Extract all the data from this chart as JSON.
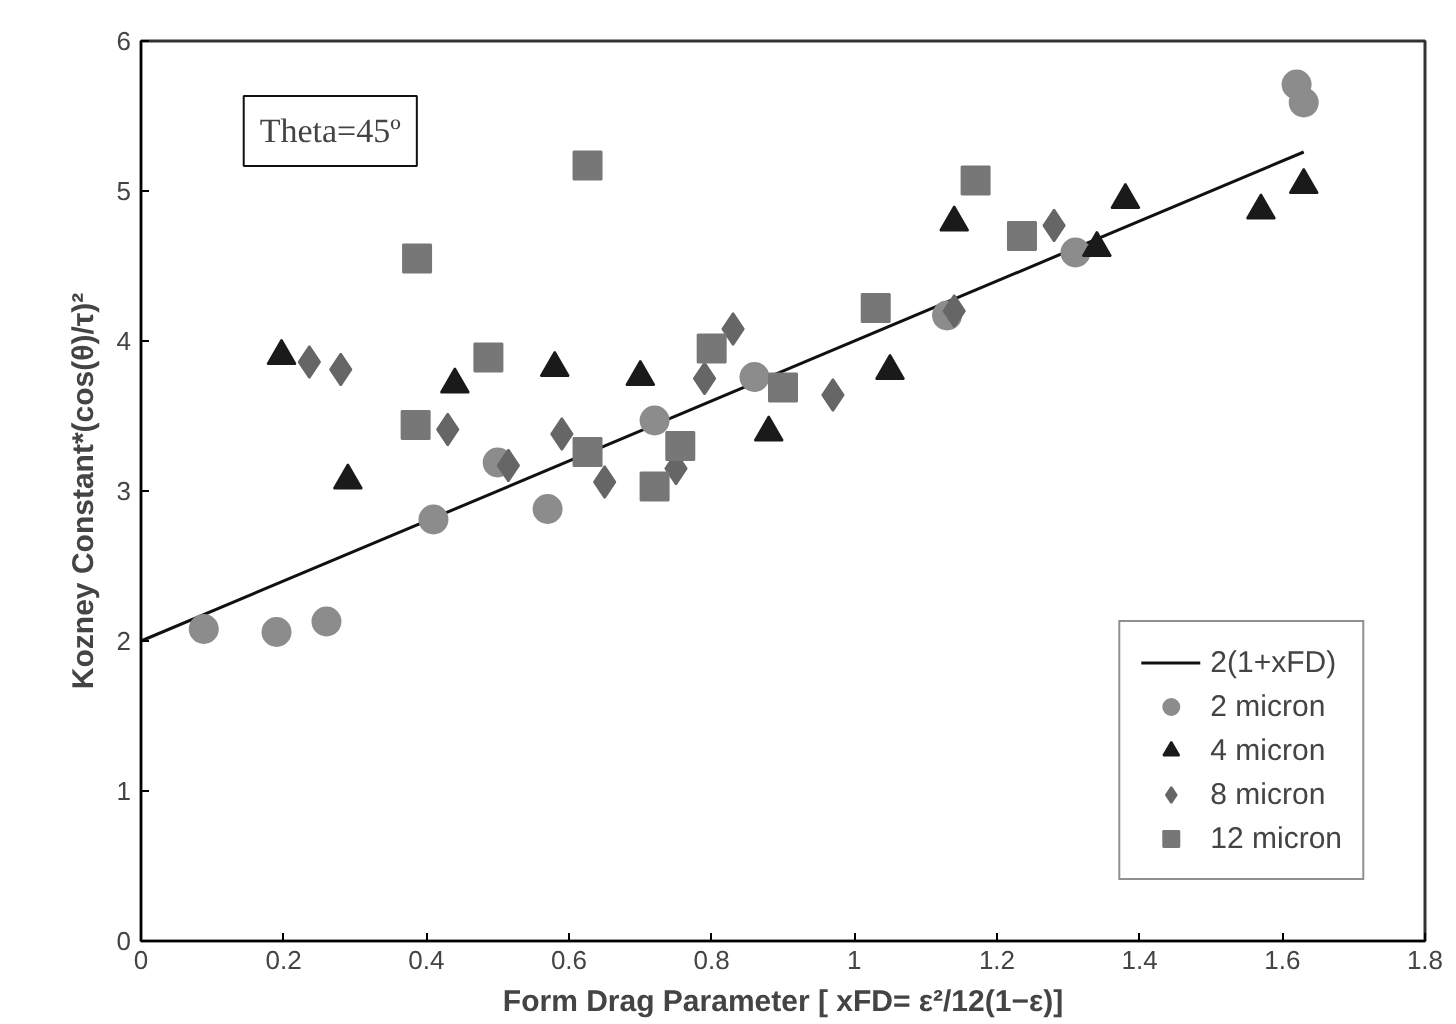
{
  "chart_data": {
    "type": "scatter",
    "xlabel": "Form Drag Parameter [ xFD= ε²/12(1−ε)]",
    "ylabel": "Kozney Constant*(cos(θ)/τ)²",
    "annotations": [
      "Theta=45º"
    ],
    "xlim": [
      0,
      1.8
    ],
    "xticks": [
      0,
      0.2,
      0.4,
      0.6,
      0.8,
      1,
      1.2,
      1.4,
      1.6,
      1.8
    ],
    "ylim": [
      0,
      6
    ],
    "yticks": [
      0,
      1,
      2,
      3,
      4,
      5,
      6
    ],
    "grid": false,
    "legend": "bottom right",
    "series": [
      {
        "name": "2(1+xFD)",
        "type": "line",
        "color": "#111111",
        "line_style": "solid",
        "x": [
          0,
          1.63
        ],
        "values": [
          2,
          5.26
        ]
      },
      {
        "name": "2 micron",
        "marker": "circle",
        "color": "#8c8c8c",
        "x": [
          0.088,
          0.19,
          0.26,
          0.41,
          0.5,
          0.57,
          0.72,
          0.86,
          1.13,
          1.31,
          1.62,
          1.63
        ],
        "values": [
          2.08,
          2.06,
          2.13,
          2.81,
          3.19,
          2.88,
          3.47,
          3.76,
          4.17,
          4.59,
          5.71,
          5.59
        ]
      },
      {
        "name": "4 micron",
        "marker": "triangle",
        "color": "#1a1a1a",
        "x": [
          0.197,
          0.29,
          0.44,
          0.58,
          0.7,
          0.88,
          1.05,
          1.14,
          1.34,
          1.38,
          1.57,
          1.63
        ],
        "values": [
          3.9,
          3.07,
          3.71,
          3.82,
          3.76,
          3.39,
          3.8,
          4.79,
          4.62,
          4.94,
          4.87,
          5.04
        ]
      },
      {
        "name": "8 micron",
        "marker": "diamond",
        "color": "#666666",
        "x": [
          0.236,
          0.28,
          0.43,
          0.515,
          0.59,
          0.65,
          0.75,
          0.79,
          0.83,
          0.97,
          1.14,
          1.28
        ],
        "values": [
          3.86,
          3.81,
          3.41,
          3.17,
          3.38,
          3.06,
          3.15,
          3.75,
          4.08,
          3.64,
          4.2,
          4.77
        ]
      },
      {
        "name": "12 micron",
        "marker": "square",
        "color": "#777777",
        "x": [
          0.387,
          0.385,
          0.487,
          0.626,
          0.626,
          0.72,
          0.756,
          0.8,
          0.9,
          1.03,
          1.17,
          1.235
        ],
        "values": [
          4.55,
          3.44,
          3.89,
          5.17,
          3.26,
          3.03,
          3.3,
          3.95,
          3.69,
          4.22,
          5.07,
          4.7
        ]
      }
    ]
  }
}
